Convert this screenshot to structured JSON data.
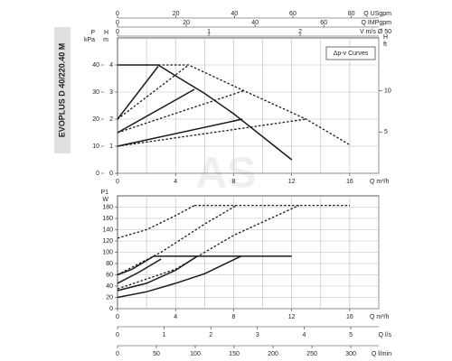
{
  "title": "EVOPLUS D 40/220.40 M",
  "watermark": "AS",
  "chart_data": [
    {
      "type": "line",
      "annotation": "Δp-v Curves",
      "xlabel": "Q m³/h",
      "xlim": [
        0,
        18
      ],
      "xticks": [
        0,
        4,
        8,
        12,
        16
      ],
      "xgrid": [
        2,
        4,
        6,
        8,
        10,
        12,
        14,
        16,
        18
      ],
      "ylabel": "H m",
      "ylim": [
        0,
        5
      ],
      "yticks": [
        0,
        1,
        2,
        3,
        4
      ],
      "grid": true,
      "y3label": "P kPa",
      "y3lim": [
        0,
        50
      ],
      "y3ticks": [
        0,
        10,
        20,
        30,
        40
      ],
      "y2label": "H ft",
      "y2lim": [
        0,
        16.4
      ],
      "y2ticks": [
        5,
        10
      ],
      "secondary_x": [
        {
          "label": "Q USgpm",
          "lim": [
            0,
            89.4
          ],
          "ticks": [
            0,
            20,
            40,
            60,
            80
          ]
        },
        {
          "label": "Q IMPgpm",
          "lim": [
            0,
            76
          ],
          "ticks": [
            0,
            20,
            40,
            60
          ]
        },
        {
          "label": "V m/s Ø 50",
          "lim": [
            0,
            2.86
          ],
          "ticks": [
            0,
            1,
            2
          ]
        }
      ],
      "series": [
        {
          "color": "#1a1a1a",
          "style": "solid",
          "x": [
            0,
            2.8,
            4,
            6,
            8,
            10,
            12
          ],
          "values": [
            4,
            4,
            3.6,
            2.95,
            2.2,
            1.35,
            0.5
          ]
        },
        {
          "color": "#1a1a1a",
          "style": "solid",
          "x": [
            0,
            2.8
          ],
          "values": [
            2,
            3.95
          ]
        },
        {
          "color": "#1a1a1a",
          "style": "solid",
          "x": [
            0,
            5.3
          ],
          "values": [
            1.5,
            3.1
          ]
        },
        {
          "color": "#1a1a1a",
          "style": "solid",
          "x": [
            0,
            8.6
          ],
          "values": [
            1,
            2
          ]
        },
        {
          "color": "#1a1a1a",
          "style": "dashed",
          "x": [
            0,
            4.9
          ],
          "values": [
            2,
            4
          ]
        },
        {
          "color": "#1a1a1a",
          "style": "dashed",
          "x": [
            0,
            8.7
          ],
          "values": [
            1.5,
            3.05
          ]
        },
        {
          "color": "#1a1a1a",
          "style": "dashed",
          "x": [
            0,
            13
          ],
          "values": [
            1,
            2
          ]
        },
        {
          "color": "#1a1a1a",
          "style": "dashed",
          "x": [
            2.8,
            4.9,
            8.7,
            13,
            16
          ],
          "values": [
            4,
            4,
            3.05,
            2,
            1.05
          ]
        }
      ]
    },
    {
      "type": "line",
      "xlabel": "Q m³/h",
      "xlim": [
        0,
        18
      ],
      "xticks": [
        0,
        4,
        8,
        12,
        16
      ],
      "xgrid": [
        2,
        4,
        6,
        8,
        10,
        12,
        14,
        16,
        18
      ],
      "ylabel": "P1 W",
      "ylim": [
        0,
        200
      ],
      "yticks": [
        0,
        20,
        40,
        60,
        80,
        100,
        120,
        140,
        160,
        180
      ],
      "grid": true,
      "secondary_x": [
        {
          "label": "Q l/s",
          "lim": [
            0,
            5.6
          ],
          "ticks": [
            0,
            1,
            2,
            3,
            4,
            5
          ]
        },
        {
          "label": "Q l/min",
          "lim": [
            0,
            336
          ],
          "ticks": [
            0,
            50,
            100,
            150,
            200,
            250,
            300
          ]
        }
      ],
      "series": [
        {
          "color": "#1a1a1a",
          "style": "solid",
          "x": [
            2.5,
            12
          ],
          "values": [
            93,
            93
          ]
        },
        {
          "color": "#1a1a1a",
          "style": "solid",
          "x": [
            0,
            2,
            4,
            6,
            8.5
          ],
          "values": [
            20,
            30,
            45,
            62,
            93
          ]
        },
        {
          "color": "#1a1a1a",
          "style": "solid",
          "x": [
            0,
            2,
            4,
            5.5
          ],
          "values": [
            32,
            45,
            68,
            93
          ]
        },
        {
          "color": "#1a1a1a",
          "style": "solid",
          "x": [
            0,
            1.5,
            3
          ],
          "values": [
            45,
            65,
            88
          ]
        },
        {
          "color": "#1a1a1a",
          "style": "solid",
          "x": [
            0,
            1,
            2.5
          ],
          "values": [
            60,
            70,
            93
          ]
        },
        {
          "color": "#1a1a1a",
          "style": "dashed",
          "x": [
            0,
            2,
            4,
            5.3
          ],
          "values": [
            125,
            140,
            165,
            183
          ]
        },
        {
          "color": "#1a1a1a",
          "style": "dashed",
          "x": [
            0,
            3,
            6,
            8.2
          ],
          "values": [
            60,
            100,
            150,
            183
          ]
        },
        {
          "color": "#1a1a1a",
          "style": "dashed",
          "x": [
            0,
            4,
            8,
            12.5
          ],
          "values": [
            35,
            70,
            130,
            183
          ]
        },
        {
          "color": "#1a1a1a",
          "style": "dashed",
          "x": [
            5.3,
            16
          ],
          "values": [
            183,
            183
          ]
        }
      ]
    }
  ]
}
